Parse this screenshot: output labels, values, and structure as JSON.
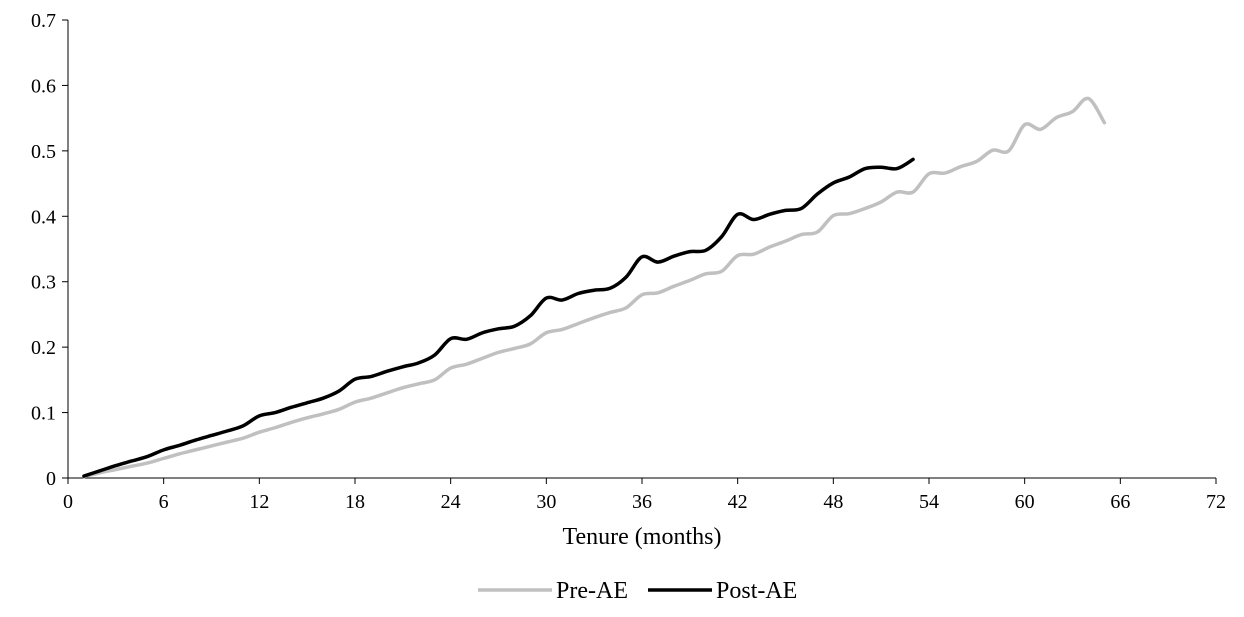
{
  "chart_data": {
    "type": "line",
    "title": "",
    "xlabel": "Tenure (months)",
    "ylabel": "",
    "xlim": [
      0,
      72
    ],
    "ylim": [
      0,
      0.7
    ],
    "x_ticks": [
      0,
      6,
      12,
      18,
      24,
      30,
      36,
      42,
      48,
      54,
      60,
      66,
      72
    ],
    "x_tick_labels": [
      "0",
      "6",
      "12",
      "18",
      "24",
      "30",
      "36",
      "42",
      "48",
      "54",
      "60",
      "66",
      "72"
    ],
    "y_ticks": [
      0,
      0.1,
      0.2,
      0.3,
      0.4,
      0.5,
      0.6,
      0.7
    ],
    "y_tick_labels": [
      "0",
      "0.1",
      "0.2",
      "0.3",
      "0.4",
      "0.5",
      "0.6",
      "0.7"
    ],
    "grid": false,
    "legend_position": "bottom",
    "series": [
      {
        "name": "Pre-AE",
        "color": "#c0c0c0",
        "x": [
          1,
          2,
          3,
          4,
          5,
          6,
          7,
          8,
          9,
          10,
          11,
          12,
          13,
          14,
          15,
          16,
          17,
          18,
          19,
          20,
          21,
          22,
          23,
          24,
          25,
          26,
          27,
          28,
          29,
          30,
          31,
          32,
          33,
          34,
          35,
          36,
          37,
          38,
          39,
          40,
          41,
          42,
          43,
          44,
          45,
          46,
          47,
          48,
          49,
          50,
          51,
          52,
          53,
          54,
          55,
          56,
          57,
          58,
          59,
          60,
          61,
          62,
          63,
          64,
          65
        ],
        "y": [
          0.002,
          0.008,
          0.013,
          0.018,
          0.023,
          0.03,
          0.037,
          0.043,
          0.049,
          0.055,
          0.061,
          0.07,
          0.077,
          0.085,
          0.092,
          0.098,
          0.105,
          0.116,
          0.122,
          0.13,
          0.138,
          0.144,
          0.15,
          0.168,
          0.174,
          0.183,
          0.192,
          0.198,
          0.205,
          0.222,
          0.227,
          0.236,
          0.245,
          0.253,
          0.26,
          0.28,
          0.283,
          0.293,
          0.302,
          0.312,
          0.316,
          0.34,
          0.342,
          0.353,
          0.362,
          0.372,
          0.376,
          0.401,
          0.404,
          0.412,
          0.422,
          0.437,
          0.437,
          0.465,
          0.466,
          0.476,
          0.484,
          0.501,
          0.5,
          0.54,
          0.533,
          0.551,
          0.56,
          0.58,
          0.543
        ]
      },
      {
        "name": "Post-AE",
        "color": "#000000",
        "x": [
          1,
          2,
          3,
          4,
          5,
          6,
          7,
          8,
          9,
          10,
          11,
          12,
          13,
          14,
          15,
          16,
          17,
          18,
          19,
          20,
          21,
          22,
          23,
          24,
          25,
          26,
          27,
          28,
          29,
          30,
          31,
          32,
          33,
          34,
          35,
          36,
          37,
          38,
          39,
          40,
          41,
          42,
          43,
          44,
          45,
          46,
          47,
          48,
          49,
          50,
          51,
          52,
          53
        ],
        "y": [
          0.003,
          0.011,
          0.019,
          0.026,
          0.033,
          0.043,
          0.05,
          0.058,
          0.065,
          0.072,
          0.08,
          0.095,
          0.1,
          0.108,
          0.115,
          0.122,
          0.133,
          0.151,
          0.155,
          0.163,
          0.17,
          0.176,
          0.188,
          0.213,
          0.212,
          0.222,
          0.228,
          0.232,
          0.248,
          0.275,
          0.272,
          0.282,
          0.287,
          0.29,
          0.307,
          0.338,
          0.33,
          0.339,
          0.346,
          0.348,
          0.369,
          0.403,
          0.395,
          0.403,
          0.409,
          0.412,
          0.434,
          0.451,
          0.46,
          0.473,
          0.475,
          0.473,
          0.487
        ]
      }
    ]
  }
}
